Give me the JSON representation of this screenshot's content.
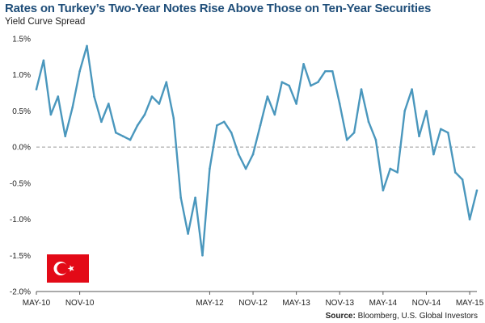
{
  "colors": {
    "line": "#4a97bd",
    "title": "#1f4e79",
    "zero_line": "#9a9a9a",
    "axis": "#555555",
    "flag_red": "#e30a17",
    "flag_white": "#ffffff"
  },
  "flag_icon": "turkey-flag-icon",
  "source": {
    "label": "Source:",
    "text": " Bloomberg, U.S. Global Investors"
  },
  "chart_data": {
    "type": "line",
    "title": "Rates on Turkey’s Two-Year Notes Rise Above Those on Ten-Year Securities",
    "ylabel": "Yield Curve Spread",
    "xlabel": "",
    "ylim": [
      -2.0,
      1.5
    ],
    "xlim": [
      "2010-05",
      "2015-06"
    ],
    "y_ticks": [
      -2.0,
      -1.5,
      -1.0,
      -0.5,
      0.0,
      0.5,
      1.0,
      1.5
    ],
    "y_tick_labels": [
      "-2.0%",
      "-1.5%",
      "-1.0%",
      "-0.5%",
      "0.0%",
      "0.5%",
      "1.0%",
      "1.5%"
    ],
    "x_ticks": [
      "2010-05",
      "2010-11",
      "2012-05",
      "2012-11",
      "2013-05",
      "2013-11",
      "2014-05",
      "2014-11",
      "2015-05"
    ],
    "x_tick_labels": [
      "MAY-10",
      "NOV-10",
      "MAY-12",
      "NOV-12",
      "MAY-13",
      "NOV-13",
      "MAY-14",
      "NOV-14",
      "MAY-15"
    ],
    "reference_line": 0.0,
    "grid": false,
    "series": [
      {
        "x": [
          "2010-05",
          "2010-06",
          "2010-07",
          "2010-08",
          "2010-09",
          "2010-10",
          "2010-11",
          "2010-12",
          "2011-01",
          "2011-02",
          "2011-03",
          "2011-04",
          "2011-05",
          "2011-06",
          "2011-07",
          "2011-08",
          "2011-09",
          "2011-10",
          "2011-11",
          "2011-12",
          "2012-01",
          "2012-02",
          "2012-03",
          "2012-04",
          "2012-05",
          "2012-06",
          "2012-07",
          "2012-08",
          "2012-09",
          "2012-10",
          "2012-11",
          "2012-12",
          "2013-01",
          "2013-02",
          "2013-03",
          "2013-04",
          "2013-05",
          "2013-06",
          "2013-07",
          "2013-08",
          "2013-09",
          "2013-10",
          "2013-11",
          "2013-12",
          "2014-01",
          "2014-02",
          "2014-03",
          "2014-04",
          "2014-05",
          "2014-06",
          "2014-07",
          "2014-08",
          "2014-09",
          "2014-10",
          "2014-11",
          "2014-12",
          "2015-01",
          "2015-02",
          "2015-03",
          "2015-04",
          "2015-05",
          "2015-06"
        ],
        "values": [
          0.8,
          1.2,
          0.45,
          0.7,
          0.15,
          0.55,
          1.05,
          1.4,
          0.7,
          0.35,
          0.6,
          0.2,
          0.15,
          0.1,
          0.3,
          0.45,
          0.7,
          0.6,
          0.9,
          0.4,
          -0.7,
          -1.2,
          -0.7,
          -1.5,
          -0.3,
          0.3,
          0.35,
          0.2,
          -0.1,
          -0.3,
          -0.1,
          0.3,
          0.7,
          0.45,
          0.9,
          0.85,
          0.6,
          1.15,
          0.85,
          0.9,
          1.05,
          1.05,
          0.6,
          0.1,
          0.2,
          0.8,
          0.35,
          0.1,
          -0.6,
          -0.3,
          -0.35,
          0.5,
          0.8,
          0.15,
          0.5,
          -0.1,
          0.25,
          0.2,
          -0.35,
          -0.45,
          -1.0,
          -0.6
        ]
      }
    ]
  }
}
